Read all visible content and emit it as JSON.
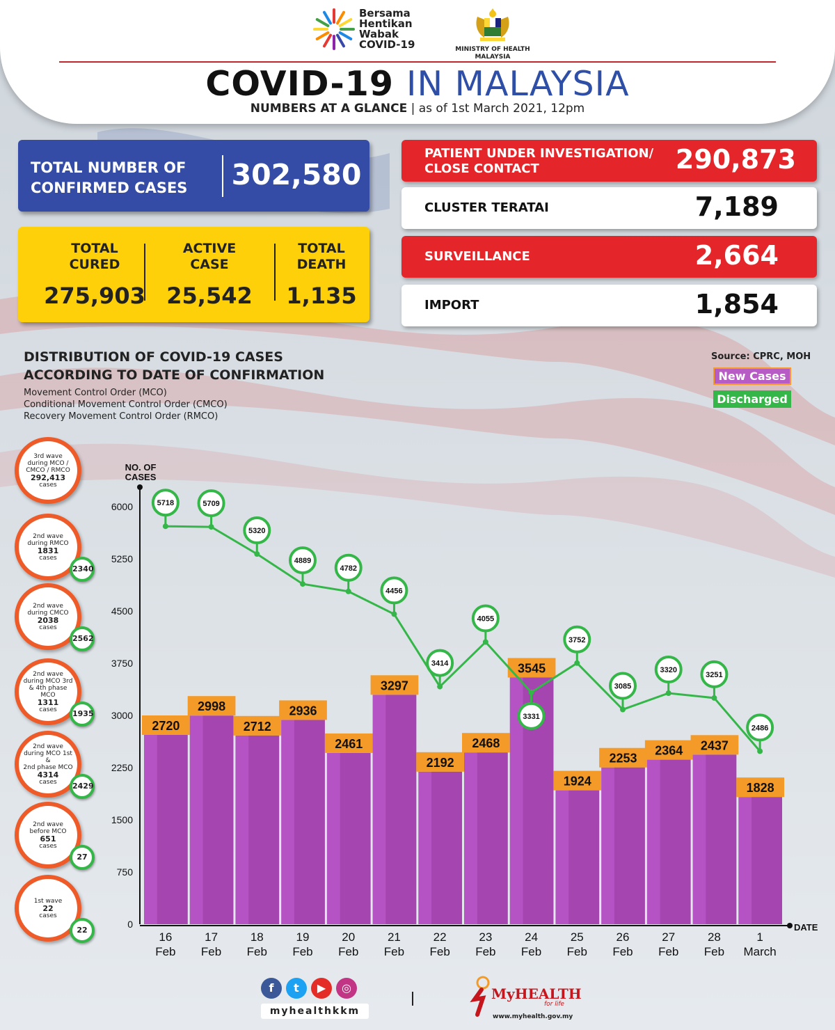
{
  "header": {
    "logo_line1": "Bersama",
    "logo_line2": "Hentikan",
    "logo_line3": "Wabak",
    "logo_line4": "COVID-19",
    "ministry_line1": "MINISTRY OF HEALTH",
    "ministry_line2": "MALAYSIA",
    "title_part1": "COVID-19",
    "title_part2": "IN MALAYSIA",
    "subtitle_bold": "NUMBERS AT A GLANCE",
    "subtitle_date": "as of 1st March 2021, 12pm"
  },
  "summary": {
    "total_label_1": "TOTAL NUMBER OF",
    "total_label_2": "CONFIRMED CASES",
    "total_value": "302,580",
    "cured_label_1": "TOTAL",
    "cured_label_2": "CURED",
    "cured_value": "275,903",
    "active_label_1": "ACTIVE",
    "active_label_2": "CASE",
    "active_value": "25,542",
    "death_label_1": "TOTAL",
    "death_label_2": "DEATH",
    "death_value": "1,135"
  },
  "categories": {
    "pui_label_1": "PATIENT UNDER INVESTIGATION/",
    "pui_label_2": "CLOSE CONTACT",
    "pui_value": "290,873",
    "cluster_label": "CLUSTER TERATAI",
    "cluster_value": "7,189",
    "surveillance_label": "SURVEILLANCE",
    "surveillance_value": "2,664",
    "import_label": "IMPORT",
    "import_value": "1,854"
  },
  "chart_section": {
    "title_1": "DISTRIBUTION OF COVID-19 CASES",
    "title_2": "ACCORDING TO DATE OF CONFIRMATION",
    "note_1": "Movement Control Order (MCO)",
    "note_2": "Conditional Movement Control Order (CMCO)",
    "note_3": "Recovery Movement Control Order (RMCO)",
    "source": "Source: CPRC, MOH",
    "legend_new": "New Cases",
    "legend_discharged": "Discharged"
  },
  "waves": [
    {
      "l1": "3rd wave",
      "l2": "during MCO /",
      "l3": "CMCO / RMCO",
      "num": "292,413",
      "l4": "cases",
      "discharged": ""
    },
    {
      "l1": "2nd wave",
      "l2": "during RMCO",
      "l3": "",
      "num": "1831",
      "l4": "cases",
      "discharged": "2340"
    },
    {
      "l1": "2nd wave",
      "l2": "during CMCO",
      "l3": "",
      "num": "2038",
      "l4": "cases",
      "discharged": "2562"
    },
    {
      "l1": "2nd wave",
      "l2": "during MCO 3rd",
      "l3": "& 4th phase MCO",
      "num": "1311",
      "l4": "cases",
      "discharged": "1935"
    },
    {
      "l1": "2nd wave",
      "l2": "during MCO 1st &",
      "l3": "2nd phase MCO",
      "num": "4314",
      "l4": "cases",
      "discharged": "2429"
    },
    {
      "l1": "2nd wave",
      "l2": "before MCO",
      "l3": "",
      "num": "651",
      "l4": "cases",
      "discharged": "27"
    },
    {
      "l1": "1st wave",
      "l2": "",
      "l3": "",
      "num": "22",
      "l4": "cases",
      "discharged": "22"
    }
  ],
  "footer": {
    "social_handle": "myhealthkkm",
    "brand": "MyHEALTH",
    "tagline": "for life",
    "url": "www.myhealth.gov.my"
  },
  "colors": {
    "bar": "#b552c4",
    "bar_dark": "#973a9e",
    "bar_label": "#f39a28",
    "line": "#35b648",
    "red": "#e4262a",
    "blue": "#344ca6",
    "yellow": "#fed009"
  },
  "chart_data": {
    "type": "bar",
    "ylabel": "NO. OF CASES",
    "xlabel": "DATE",
    "ylim": [
      0,
      6000
    ],
    "yticks": [
      0,
      750,
      1500,
      2250,
      3000,
      3750,
      4500,
      5250,
      6000
    ],
    "categories": [
      "16 Feb",
      "17 Feb",
      "18 Feb",
      "19 Feb",
      "20 Feb",
      "21 Feb",
      "22 Feb",
      "23 Feb",
      "24 Feb",
      "25 Feb",
      "26 Feb",
      "27 Feb",
      "28 Feb",
      "1 March"
    ],
    "category_top": [
      "16",
      "17",
      "18",
      "19",
      "20",
      "21",
      "22",
      "23",
      "24",
      "25",
      "26",
      "27",
      "28",
      "1"
    ],
    "category_bottom": [
      "Feb",
      "Feb",
      "Feb",
      "Feb",
      "Feb",
      "Feb",
      "Feb",
      "Feb",
      "Feb",
      "Feb",
      "Feb",
      "Feb",
      "Feb",
      "March"
    ],
    "series": [
      {
        "name": "New Cases",
        "type": "bar",
        "values": [
          2720,
          2998,
          2712,
          2936,
          2461,
          3297,
          2192,
          2468,
          3545,
          1924,
          2253,
          2364,
          2437,
          1828
        ]
      },
      {
        "name": "Discharged",
        "type": "line",
        "values": [
          5718,
          5709,
          5320,
          4889,
          4782,
          4456,
          3414,
          4055,
          3331,
          3752,
          3085,
          3320,
          3251,
          2486
        ]
      }
    ]
  }
}
